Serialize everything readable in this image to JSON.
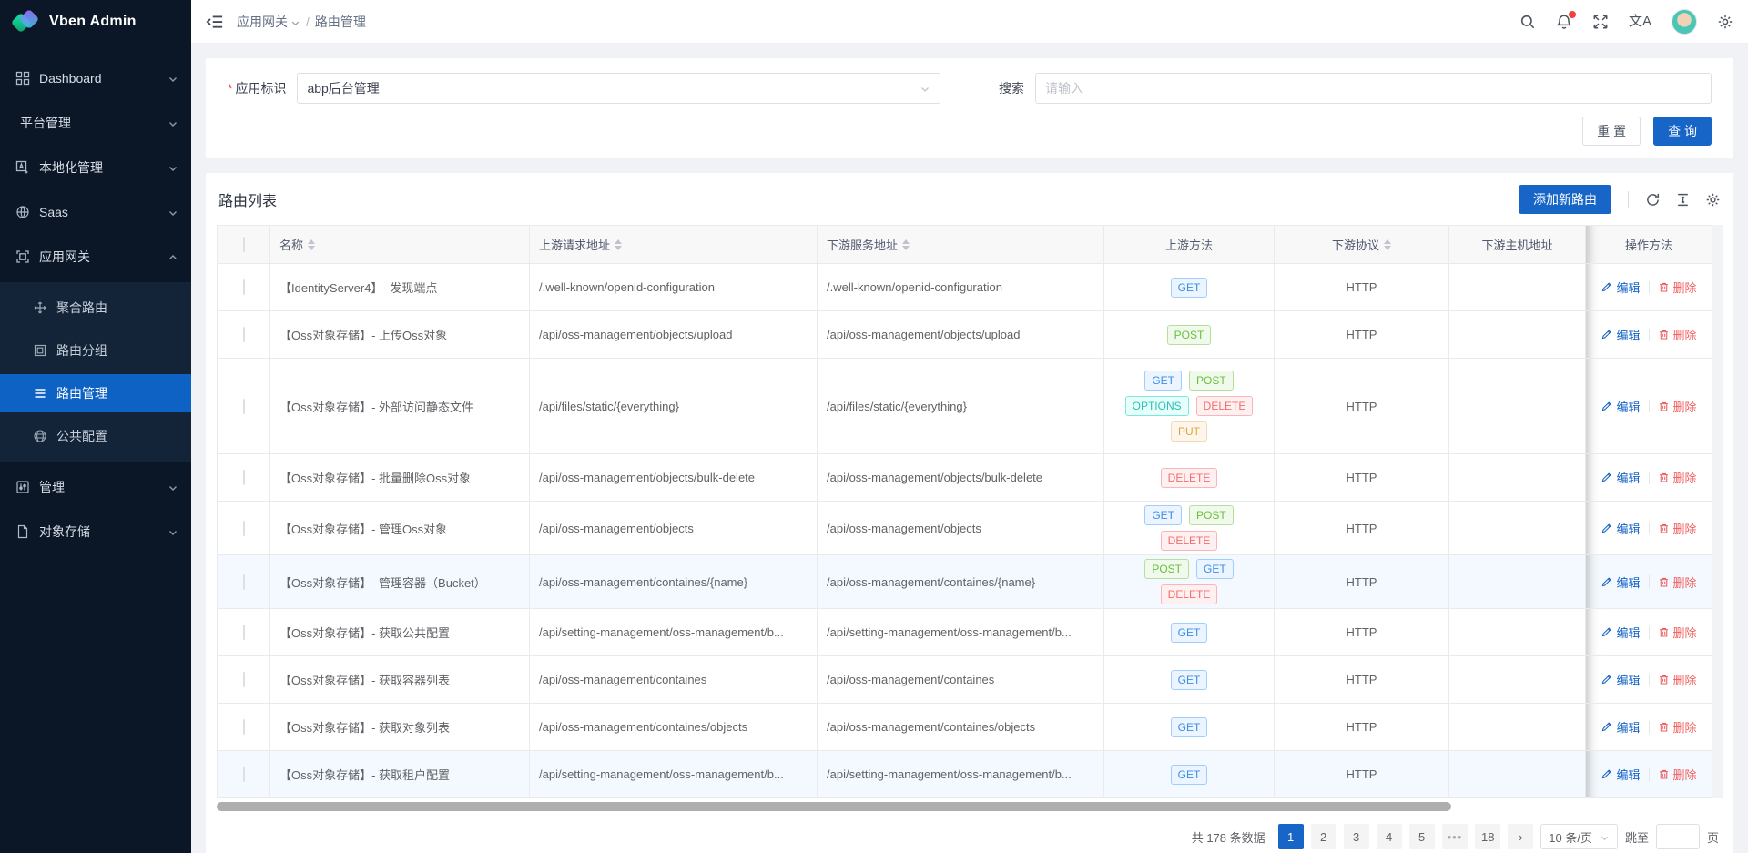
{
  "app": {
    "title": "Vben Admin"
  },
  "colors": {
    "primary": "#1765c6",
    "sidebar_bg": "#0b1626",
    "sidebar_submenu_bg": "#132438",
    "sidebar_active_bg": "#0d62c4",
    "danger": "#ef5d5d",
    "notification_dot": "#f5413d"
  },
  "sidebar": {
    "items": [
      {
        "label": "Dashboard",
        "icon": "dashboard-grid-icon",
        "chevron": "down"
      },
      {
        "label": "平台管理",
        "icon": null,
        "chevron": "down"
      },
      {
        "label": "本地化管理",
        "icon": "localization-icon",
        "chevron": "down"
      },
      {
        "label": "Saas",
        "icon": "saas-globe-icon",
        "chevron": "down"
      },
      {
        "label": "应用网关",
        "icon": "gateway-icon",
        "chevron": "up",
        "expanded": true
      },
      {
        "label": "管理",
        "icon": "manage-icon",
        "chevron": "down"
      },
      {
        "label": "对象存储",
        "icon": "object-storage-icon",
        "chevron": "down"
      }
    ],
    "gateway_children": [
      {
        "label": "聚合路由",
        "icon": "aggregate-route-icon",
        "active": false
      },
      {
        "label": "路由分组",
        "icon": "route-group-icon",
        "active": false
      },
      {
        "label": "路由管理",
        "icon": "route-manage-icon",
        "active": true
      },
      {
        "label": "公共配置",
        "icon": "public-config-icon",
        "active": false
      }
    ]
  },
  "topbar": {
    "breadcrumb": {
      "parent": "应用网关",
      "separator": "/",
      "current": "路由管理"
    },
    "icons": [
      "search-icon",
      "notification-bell-icon",
      "fullscreen-icon",
      "translate-icon",
      "avatar",
      "settings-gear-icon"
    ],
    "translate_glyph": "文A",
    "has_notification": true
  },
  "filter": {
    "app_label": "应用标识",
    "app_required": true,
    "app_value": "abp后台管理",
    "search_label": "搜索",
    "search_placeholder": "请输入",
    "reset_label": "重 置",
    "query_label": "查 询"
  },
  "table": {
    "title": "路由列表",
    "add_button_label": "添加新路由",
    "toolbar_icons": [
      "refresh-icon",
      "row-height-icon",
      "column-settings-icon"
    ],
    "columns": [
      {
        "label": "名称",
        "sortable": true
      },
      {
        "label": "上游请求地址",
        "sortable": true
      },
      {
        "label": "下游服务地址",
        "sortable": true
      },
      {
        "label": "上游方法",
        "sortable": false
      },
      {
        "label": "下游协议",
        "sortable": true
      },
      {
        "label": "下游主机地址",
        "sortable": false
      },
      {
        "label": "操作方法",
        "sortable": false
      }
    ],
    "edit_label": "编辑",
    "delete_label": "删除",
    "host_redacted": true,
    "rows": [
      {
        "name": "【IdentityServer4】- 发现端点",
        "upstream": "/.well-known/openid-configuration",
        "downstream": "/.well-known/openid-configuration",
        "methods": [
          "GET"
        ],
        "scheme": "HTTP",
        "tinted": false
      },
      {
        "name": "【Oss对象存储】- 上传Oss对象",
        "upstream": "/api/oss-management/objects/upload",
        "downstream": "/api/oss-management/objects/upload",
        "methods": [
          "POST"
        ],
        "scheme": "HTTP",
        "tinted": false
      },
      {
        "name": "【Oss对象存储】- 外部访问静态文件",
        "upstream": "/api/files/static/{everything}",
        "downstream": "/api/files/static/{everything}",
        "methods": [
          "GET",
          "POST",
          "OPTIONS",
          "DELETE",
          "PUT"
        ],
        "scheme": "HTTP",
        "tinted": false
      },
      {
        "name": "【Oss对象存储】- 批量删除Oss对象",
        "upstream": "/api/oss-management/objects/bulk-delete",
        "downstream": "/api/oss-management/objects/bulk-delete",
        "methods": [
          "DELETE"
        ],
        "scheme": "HTTP",
        "tinted": false
      },
      {
        "name": "【Oss对象存储】- 管理Oss对象",
        "upstream": "/api/oss-management/objects",
        "downstream": "/api/oss-management/objects",
        "methods": [
          "GET",
          "POST",
          "DELETE"
        ],
        "scheme": "HTTP",
        "tinted": false
      },
      {
        "name": "【Oss对象存储】- 管理容器（Bucket）",
        "upstream": "/api/oss-management/containes/{name}",
        "downstream": "/api/oss-management/containes/{name}",
        "methods": [
          "POST",
          "GET",
          "DELETE"
        ],
        "scheme": "HTTP",
        "tinted": true
      },
      {
        "name": "【Oss对象存储】- 获取公共配置",
        "upstream": "/api/setting-management/oss-management/b...",
        "downstream": "/api/setting-management/oss-management/b...",
        "methods": [
          "GET"
        ],
        "scheme": "HTTP",
        "tinted": false
      },
      {
        "name": "【Oss对象存储】- 获取容器列表",
        "upstream": "/api/oss-management/containes",
        "downstream": "/api/oss-management/containes",
        "methods": [
          "GET"
        ],
        "scheme": "HTTP",
        "tinted": false
      },
      {
        "name": "【Oss对象存储】- 获取对象列表",
        "upstream": "/api/oss-management/containes/objects",
        "downstream": "/api/oss-management/containes/objects",
        "methods": [
          "GET"
        ],
        "scheme": "HTTP",
        "tinted": false
      },
      {
        "name": "【Oss对象存储】- 获取租户配置",
        "upstream": "/api/setting-management/oss-management/b...",
        "downstream": "/api/setting-management/oss-management/b...",
        "methods": [
          "GET"
        ],
        "scheme": "HTTP",
        "tinted": true
      }
    ]
  },
  "method_colors": {
    "GET": {
      "bg": "#ecf5ff",
      "border": "#9fcdff",
      "text": "#3a8ee6"
    },
    "POST": {
      "bg": "#f0f9eb",
      "border": "#b3e19d",
      "text": "#67c23a"
    },
    "OPTIONS": {
      "bg": "#e6fffb",
      "border": "#7ee7dd",
      "text": "#2bc0b8"
    },
    "DELETE": {
      "bg": "#fef0f0",
      "border": "#fab6b6",
      "text": "#f56c6c"
    },
    "PUT": {
      "bg": "#fdf6ec",
      "border": "#f5dab1",
      "text": "#e6a23c"
    }
  },
  "pagination": {
    "total_text": "共 178 条数据",
    "pages": [
      "1",
      "2",
      "3",
      "4",
      "5",
      "•••",
      "18"
    ],
    "active_page": "1",
    "next_label": "›",
    "page_size_value": "10 条/页",
    "jump_prefix": "跳至",
    "jump_suffix": "页"
  }
}
